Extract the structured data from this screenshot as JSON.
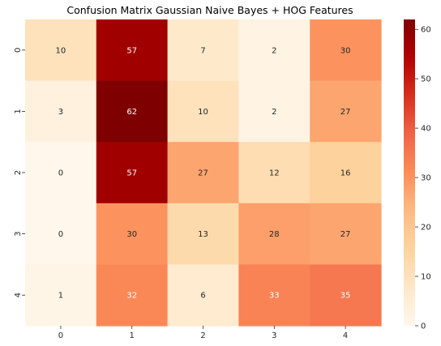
{
  "chart_data": {
    "type": "heatmap",
    "title": "Confusion Matrix Gaussian Naive Bayes + HOG Features",
    "xlabel": "",
    "ylabel": "",
    "x_categories": [
      "0",
      "1",
      "2",
      "3",
      "4"
    ],
    "y_categories": [
      "0",
      "1",
      "2",
      "3",
      "4"
    ],
    "values": [
      [
        10,
        57,
        7,
        2,
        30
      ],
      [
        3,
        62,
        10,
        2,
        27
      ],
      [
        0,
        57,
        27,
        12,
        16
      ],
      [
        0,
        30,
        13,
        28,
        27
      ],
      [
        1,
        32,
        6,
        33,
        35
      ]
    ],
    "colormap": "OrRd",
    "color_range": [
      0,
      62
    ],
    "colorbar_ticks": [
      0,
      10,
      20,
      30,
      40,
      50,
      60
    ],
    "colorbar_tick_labels": [
      "0",
      "10",
      "20",
      "30",
      "40",
      "50",
      "60"
    ],
    "annotated": true,
    "grid": false
  }
}
